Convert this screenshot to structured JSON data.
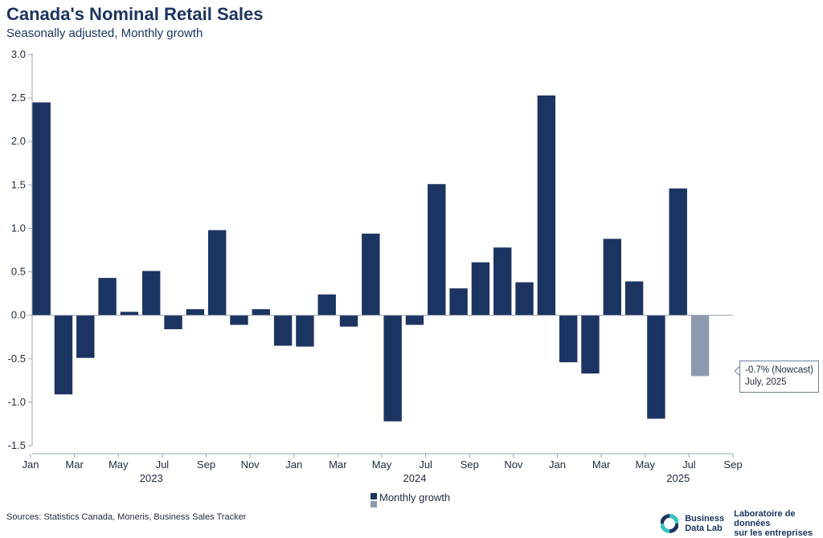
{
  "title": "Canada's Nominal Retail Sales",
  "subtitle": "Seasonally adjusted, Monthly growth",
  "source": "Sources: Statistics Canada, Moneris, Business Sales Tracker",
  "logo": {
    "en_line1": "Business",
    "en_line2": "Data Lab",
    "fr_line1": "Laboratoire de données",
    "fr_line2": "sur les entreprises"
  },
  "callout": {
    "line1": "-0.7% (Nowcast)",
    "line2": "July, 2025"
  },
  "colors": {
    "actual": "#1c3461",
    "nowcast": "#8c9ab1",
    "teal": "#35c4c4"
  },
  "chart_data": {
    "type": "bar",
    "title": "Canada's Nominal Retail Sales",
    "subtitle": "Seasonally adjusted, Monthly growth",
    "xlabel": "",
    "ylabel": "",
    "ylim": [
      -1.5,
      3.0
    ],
    "yticks": [
      "-1.5",
      "-1.0",
      "-0.5",
      "0.0",
      "0.5",
      "1.0",
      "1.5",
      "2.0",
      "2.5",
      "3.0"
    ],
    "categories": [
      "2023-01",
      "2023-02",
      "2023-03",
      "2023-04",
      "2023-05",
      "2023-06",
      "2023-07",
      "2023-08",
      "2023-09",
      "2023-10",
      "2023-11",
      "2023-12",
      "2024-01",
      "2024-02",
      "2024-03",
      "2024-04",
      "2024-05",
      "2024-06",
      "2024-07",
      "2024-08",
      "2024-09",
      "2024-10",
      "2024-11",
      "2024-12",
      "2025-01",
      "2025-02",
      "2025-03",
      "2025-04",
      "2025-05",
      "2025-06",
      "2025-07"
    ],
    "series": [
      {
        "name": "Monthly growth",
        "values": [
          2.45,
          -0.91,
          -0.49,
          0.43,
          0.04,
          0.51,
          -0.16,
          0.07,
          0.98,
          -0.11,
          0.07,
          -0.35,
          -0.36,
          0.24,
          -0.13,
          0.94,
          -1.22,
          -0.11,
          1.51,
          0.31,
          0.61,
          0.78,
          0.38,
          2.53,
          -0.54,
          -0.67,
          0.88,
          0.39,
          -1.19,
          1.46,
          -0.7
        ],
        "nowcast_index": 30
      }
    ],
    "x_tick_labels": [
      "Jan",
      "Mar",
      "May",
      "Jul",
      "Sep",
      "Nov",
      "Jan",
      "Mar",
      "May",
      "Jul",
      "Sep",
      "Nov",
      "Jan",
      "Mar",
      "May",
      "Jul",
      "Sep"
    ],
    "year_labels": [
      "2023",
      "2024",
      "2025"
    ],
    "legend": {
      "label": "Monthly growth",
      "position": "bottom"
    },
    "grid": false
  }
}
